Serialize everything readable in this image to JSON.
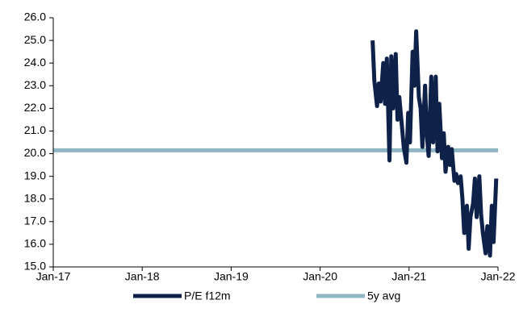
{
  "chart_data": {
    "type": "line",
    "xlim": [
      2017,
      2022
    ],
    "xticks": [
      {
        "value": 2017,
        "label": "Jan-17"
      },
      {
        "value": 2018,
        "label": "Jan-18"
      },
      {
        "value": 2019,
        "label": "Jan-19"
      },
      {
        "value": 2020,
        "label": "Jan-20"
      },
      {
        "value": 2021,
        "label": "Jan-21"
      },
      {
        "value": 2022,
        "label": "Jan-22"
      }
    ],
    "ylim": [
      15,
      26
    ],
    "yticks": [
      {
        "value": 15,
        "label": "15.0"
      },
      {
        "value": 16,
        "label": "16.0"
      },
      {
        "value": 17,
        "label": "17.0"
      },
      {
        "value": 18,
        "label": "18.0"
      },
      {
        "value": 19,
        "label": "19.0"
      },
      {
        "value": 20,
        "label": "20.0"
      },
      {
        "value": 21,
        "label": "21.0"
      },
      {
        "value": 22,
        "label": "22.0"
      },
      {
        "value": 23,
        "label": "23.0"
      },
      {
        "value": 24,
        "label": "24.0"
      },
      {
        "value": 25,
        "label": "25.0"
      },
      {
        "value": 26,
        "label": "26.0"
      }
    ],
    "legend": "bottom",
    "series": [
      {
        "name": "P/E f12m",
        "color": "#0d2149",
        "x": [
          2020.59,
          2020.61,
          2020.64,
          2020.66,
          2020.68,
          2020.71,
          2020.73,
          2020.75,
          2020.78,
          2020.8,
          2020.82,
          2020.85,
          2020.87,
          2020.89,
          2020.92,
          2020.94,
          2020.97,
          2020.99,
          2021.01,
          2021.04,
          2021.06,
          2021.08,
          2021.11,
          2021.13,
          2021.15,
          2021.18,
          2021.2,
          2021.22,
          2021.25,
          2021.27,
          2021.3,
          2021.32,
          2021.34,
          2021.37,
          2021.39,
          2021.41,
          2021.44,
          2021.46,
          2021.48,
          2021.51,
          2021.53,
          2021.55,
          2021.58,
          2021.6,
          2021.62,
          2021.65,
          2021.67,
          2021.69,
          2021.72,
          2021.74,
          2021.76,
          2021.79,
          2021.81,
          2021.83,
          2021.86,
          2021.88,
          2021.91,
          2021.93,
          2021.95,
          2021.98
        ],
        "values": [
          25.0,
          23.2,
          22.1,
          23.1,
          22.3,
          24.0,
          22.2,
          24.2,
          19.7,
          24.3,
          22.0,
          24.4,
          21.5,
          22.5,
          21.2,
          20.3,
          19.6,
          21.8,
          20.5,
          24.5,
          23.0,
          25.4,
          22.5,
          22.0,
          20.3,
          23.0,
          20.8,
          19.9,
          23.4,
          20.5,
          23.4,
          20.1,
          22.2,
          19.8,
          20.9,
          19.2,
          20.3,
          19.5,
          20.2,
          18.8,
          19.1,
          18.7,
          19.0,
          18.0,
          16.5,
          17.7,
          15.8,
          17.2,
          17.8,
          18.9,
          17.2,
          19.0,
          17.3,
          16.5,
          15.6,
          16.8,
          15.5,
          17.7,
          16.1,
          18.9
        ]
      },
      {
        "name": "5y avg",
        "color": "#8fb8c4",
        "x": [
          2017,
          2022
        ],
        "values": [
          20.15,
          20.15
        ]
      }
    ]
  }
}
